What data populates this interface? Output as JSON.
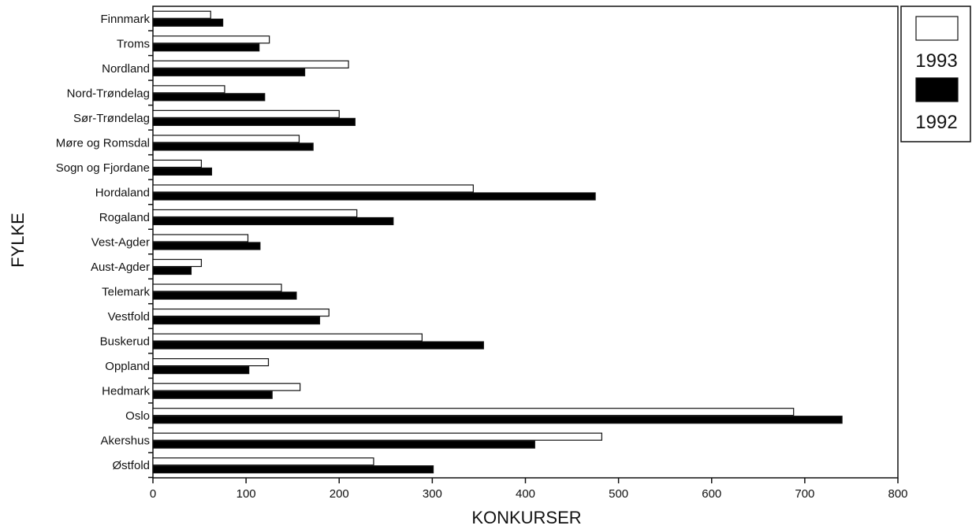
{
  "chart_data": {
    "type": "bar",
    "orientation": "horizontal",
    "xlabel": "KONKURSER",
    "ylabel": "FYLKE",
    "xlim": [
      0,
      800
    ],
    "xticks": [
      "0",
      "100",
      "200",
      "300",
      "400",
      "500",
      "600",
      "700",
      "800"
    ],
    "legend_position": "right-top",
    "categories": [
      "Finnmark",
      "Troms",
      "Nordland",
      "Nord-Trøndelag",
      "Sør-Trøndelag",
      "Møre og Romsdal",
      "Sogn og Fjordane",
      "Hordaland",
      "Rogaland",
      "Vest-Agder",
      "Aust-Agder",
      "Telemark",
      "Vestfold",
      "Buskerud",
      "Oppland",
      "Hedmark",
      "Oslo",
      "Akershus",
      "Østfold"
    ],
    "series": [
      {
        "name": "1993",
        "color": "#ffffff",
        "values": [
          62,
          125,
          210,
          77,
          200,
          157,
          52,
          344,
          219,
          102,
          52,
          138,
          189,
          289,
          124,
          158,
          688,
          482,
          237
        ]
      },
      {
        "name": "1992",
        "color": "#000000",
        "values": [
          75,
          114,
          163,
          120,
          217,
          172,
          63,
          475,
          258,
          115,
          41,
          154,
          179,
          355,
          103,
          128,
          740,
          410,
          301
        ]
      }
    ],
    "grid": false
  }
}
